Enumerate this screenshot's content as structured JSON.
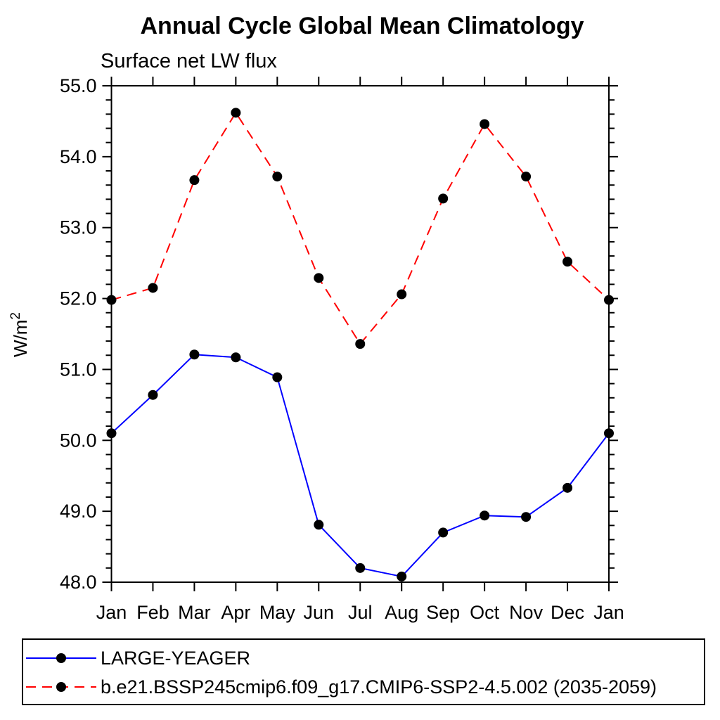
{
  "title": "Annual Cycle Global Mean Climatology",
  "subtitle": "Surface net LW flux",
  "chart_data": {
    "type": "line",
    "x_categories": [
      "Jan",
      "Feb",
      "Mar",
      "Apr",
      "May",
      "Jun",
      "Jul",
      "Aug",
      "Sep",
      "Oct",
      "Nov",
      "Dec",
      "Jan"
    ],
    "ylabel_base": "W/m",
    "ylabel_sup": "2",
    "ylim": [
      48.0,
      55.0
    ],
    "ytick_step": 1.0,
    "yminor_step": 0.2,
    "grid": "off",
    "legend_position": "bottom-left-box",
    "axis_color": "#000000",
    "marker_color": "#000000",
    "series": [
      {
        "name": "LARGE-YEAGER",
        "color": "#0000ff",
        "style": "solid",
        "marker": "circle",
        "values": [
          50.1,
          50.64,
          51.21,
          51.17,
          50.89,
          48.81,
          48.2,
          48.08,
          48.7,
          48.94,
          48.92,
          49.33,
          50.1
        ]
      },
      {
        "name": "b.e21.BSSP245cmip6.f09_g17.CMIP6-SSP2-4.5.002 (2035-2059)",
        "color": "#ff0000",
        "style": "dashed",
        "marker": "circle",
        "values": [
          51.98,
          52.15,
          53.67,
          54.62,
          53.72,
          52.29,
          51.36,
          52.06,
          53.41,
          54.46,
          53.72,
          52.52,
          51.98
        ]
      }
    ]
  }
}
